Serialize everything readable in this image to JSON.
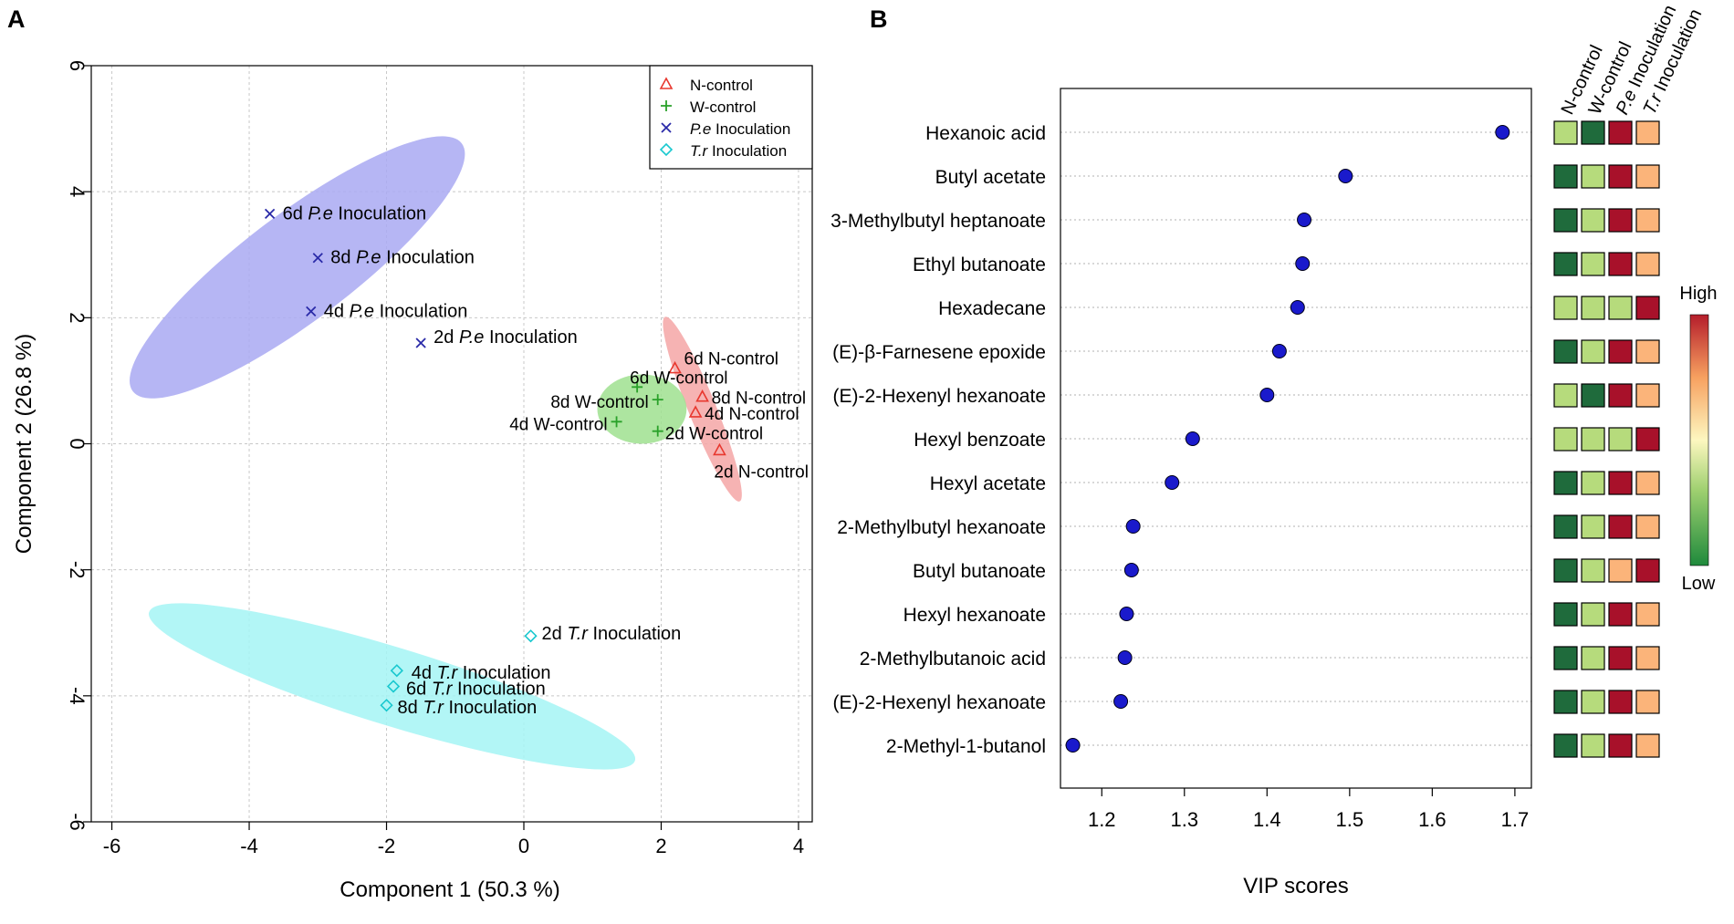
{
  "panels": {
    "a_label": "A",
    "b_label": "B"
  },
  "chart_data": [
    {
      "type": "scatter",
      "panel": "A",
      "xlabel": "Component 1 (50.3 %)",
      "ylabel": "Component 2 (26.8 %)",
      "xlim": [
        -6.3,
        4.2
      ],
      "ylim": [
        -6,
        6
      ],
      "xticks": [
        -6,
        -4,
        -2,
        0,
        2,
        4
      ],
      "yticks": [
        -6,
        -4,
        -2,
        0,
        2,
        4,
        6
      ],
      "grid": true,
      "legend_position": "top-right",
      "series": [
        {
          "name": "N-control",
          "marker": "triangle",
          "color": "#e8382f",
          "points": [
            {
              "label": "6d N-control",
              "x": 2.2,
              "y": 1.2
            },
            {
              "label": "8d N-control",
              "x": 2.6,
              "y": 0.75
            },
            {
              "label": "4d N-control",
              "x": 2.5,
              "y": 0.5
            },
            {
              "label": "2d N-control",
              "x": 2.85,
              "y": -0.1
            }
          ],
          "ellipse": {
            "cx": 2.6,
            "cy": 0.55,
            "rx": 1.45,
            "ry": 0.22,
            "angle_deg": -68,
            "fill": "#f4a6a6"
          }
        },
        {
          "name": "W-control",
          "marker": "plus",
          "color": "#2aa12a",
          "points": [
            {
              "label": "6d W-control",
              "x": 1.65,
              "y": 0.9
            },
            {
              "label": "8d W-control",
              "x": 1.95,
              "y": 0.7
            },
            {
              "label": "4d W-control",
              "x": 1.35,
              "y": 0.35
            },
            {
              "label": "2d W-control",
              "x": 1.95,
              "y": 0.2
            }
          ],
          "ellipse": {
            "cx": 1.72,
            "cy": 0.55,
            "rx": 0.65,
            "ry": 0.55,
            "angle_deg": 0,
            "fill": "#9fe08f"
          }
        },
        {
          "name": "P.e Inoculation",
          "name_italic": "P.e",
          "name_rest": " Inoculation",
          "marker": "x",
          "color": "#2a2aa8",
          "points": [
            {
              "label": "6d P.e Inoculation",
              "day": "6d",
              "taxon": "P.e",
              "rest": " Inoculation",
              "x": -3.7,
              "y": 3.65
            },
            {
              "label": "8d P.e Inoculation",
              "day": "8d",
              "taxon": "P.e",
              "rest": " Inoculation",
              "x": -3.0,
              "y": 2.95
            },
            {
              "label": "4d P.e Inoculation",
              "day": "4d",
              "taxon": "P.e",
              "rest": " Inoculation",
              "x": -3.1,
              "y": 2.1
            },
            {
              "label": "2d P.e Inoculation",
              "day": "2d",
              "taxon": "P.e",
              "rest": " Inoculation",
              "x": -1.5,
              "y": 1.6
            }
          ],
          "ellipse": {
            "cx": -3.3,
            "cy": 2.8,
            "rx": 3.0,
            "ry": 0.85,
            "angle_deg": 37,
            "fill": "#a9a9f2"
          }
        },
        {
          "name": "T.r Inoculation",
          "name_italic": "T.r",
          "name_rest": " Inoculation",
          "marker": "diamond",
          "color": "#19c8cf",
          "points": [
            {
              "label": "2d T.r Inoculation",
              "day": "2d",
              "taxon": "T.r",
              "rest": " Inoculation",
              "x": 0.1,
              "y": -3.05
            },
            {
              "label": "4d T.r Inoculation",
              "day": "4d",
              "taxon": "T.r",
              "rest": " Inoculation",
              "x": -1.85,
              "y": -3.6
            },
            {
              "label": "6d T.r Inoculation",
              "day": "6d",
              "taxon": "T.r",
              "rest": " Inoculation",
              "x": -1.9,
              "y": -3.85
            },
            {
              "label": "8d T.r Inoculation",
              "day": "8d",
              "taxon": "T.r",
              "rest": " Inoculation",
              "x": -2.0,
              "y": -4.15
            }
          ],
          "ellipse": {
            "cx": -1.92,
            "cy": -3.85,
            "rx": 3.7,
            "ry": 0.62,
            "angle_deg": -17,
            "fill": "#a4f4f4"
          }
        }
      ]
    },
    {
      "type": "dot",
      "panel": "B",
      "xlabel": "VIP scores",
      "xlim": [
        1.15,
        1.72
      ],
      "xticks": [
        1.2,
        1.3,
        1.4,
        1.5,
        1.6,
        1.7
      ],
      "grid": true,
      "point_color": "#1a1acc",
      "heatmap_columns": [
        "N-control",
        "W-control",
        "P.e Inoculation",
        "T.r Inoculation"
      ],
      "heatmap_col_parts": [
        [
          "N-control",
          ""
        ],
        [
          "W-control",
          ""
        ],
        [
          "P.e",
          " Inoculation"
        ],
        [
          "T.r",
          " Inoculation"
        ]
      ],
      "heatmap_colors": {
        "dark_green": "#1f6b3c",
        "light_green": "#b6db7c",
        "dark_red": "#a8112a",
        "orange": "#fbb47a"
      },
      "colorbar": {
        "high": "High",
        "low": "Low"
      },
      "features": [
        {
          "name": "Hexanoic acid",
          "vip": 1.685,
          "cells": [
            "light_green",
            "dark_green",
            "dark_red",
            "orange"
          ]
        },
        {
          "name": "Butyl acetate",
          "vip": 1.495,
          "cells": [
            "dark_green",
            "light_green",
            "dark_red",
            "orange"
          ]
        },
        {
          "name": "3-Methylbutyl heptanoate",
          "vip": 1.445,
          "cells": [
            "dark_green",
            "light_green",
            "dark_red",
            "orange"
          ]
        },
        {
          "name": "Ethyl butanoate",
          "vip": 1.443,
          "cells": [
            "dark_green",
            "light_green",
            "dark_red",
            "orange"
          ]
        },
        {
          "name": "Hexadecane",
          "vip": 1.437,
          "cells": [
            "light_green",
            "light_green",
            "light_green",
            "dark_red"
          ]
        },
        {
          "name": "(E)-β-Farnesene epoxide",
          "vip": 1.415,
          "cells": [
            "dark_green",
            "light_green",
            "dark_red",
            "orange"
          ]
        },
        {
          "name": "(E)-2-Hexenyl hexanoate",
          "vip": 1.4,
          "cells": [
            "light_green",
            "dark_green",
            "dark_red",
            "orange"
          ]
        },
        {
          "name": "Hexyl benzoate",
          "vip": 1.31,
          "cells": [
            "light_green",
            "light_green",
            "light_green",
            "dark_red"
          ]
        },
        {
          "name": "Hexyl acetate",
          "vip": 1.285,
          "cells": [
            "dark_green",
            "light_green",
            "dark_red",
            "orange"
          ]
        },
        {
          "name": "2-Methylbutyl hexanoate",
          "vip": 1.238,
          "cells": [
            "dark_green",
            "light_green",
            "dark_red",
            "orange"
          ]
        },
        {
          "name": "Butyl butanoate",
          "vip": 1.236,
          "cells": [
            "dark_green",
            "light_green",
            "orange",
            "dark_red"
          ]
        },
        {
          "name": "Hexyl hexanoate",
          "vip": 1.23,
          "cells": [
            "dark_green",
            "light_green",
            "dark_red",
            "orange"
          ]
        },
        {
          "name": "2-Methylbutanoic acid",
          "vip": 1.228,
          "cells": [
            "dark_green",
            "light_green",
            "dark_red",
            "orange"
          ]
        },
        {
          "name": "(E)-2-Hexenyl hexanoate",
          "vip": 1.223,
          "cells": [
            "dark_green",
            "light_green",
            "dark_red",
            "orange"
          ]
        },
        {
          "name": "2-Methyl-1-butanol",
          "vip": 1.165,
          "cells": [
            "dark_green",
            "light_green",
            "dark_red",
            "orange"
          ]
        }
      ]
    }
  ]
}
